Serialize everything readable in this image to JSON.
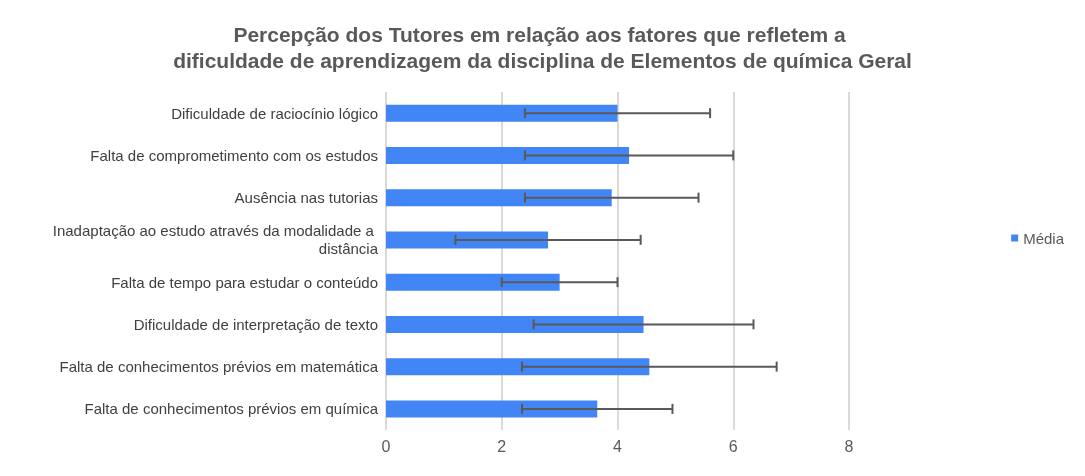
{
  "chart_data": {
    "type": "bar",
    "orientation": "horizontal",
    "title": "Percepção dos Tutores em relação aos fatores que refletem a dificuldade de aprendizagem da disciplina de Elementos de química Geral",
    "categories": [
      "Dificuldade de raciocínio lógico",
      "Falta de comprometimento com os estudos",
      "Ausência nas tutorias",
      "Inadaptação ao estudo através da modalidade a distância",
      "Falta de tempo para estudar o conteúdo",
      "Dificuldade de interpretação de texto",
      "Falta de conhecimentos prévios em matemática",
      "Falta de conhecimentos prévios em química"
    ],
    "series": [
      {
        "name": "Média",
        "color": "#4285f4",
        "values": [
          4.0,
          4.2,
          3.9,
          2.8,
          3.0,
          4.45,
          4.55,
          3.65
        ],
        "errors": [
          1.6,
          1.8,
          1.5,
          1.6,
          1.0,
          1.9,
          2.2,
          1.3
        ]
      }
    ],
    "xlim": [
      0,
      8
    ],
    "xticks": [
      0,
      2,
      4,
      6,
      8
    ],
    "grid": "x",
    "legend": "right"
  }
}
